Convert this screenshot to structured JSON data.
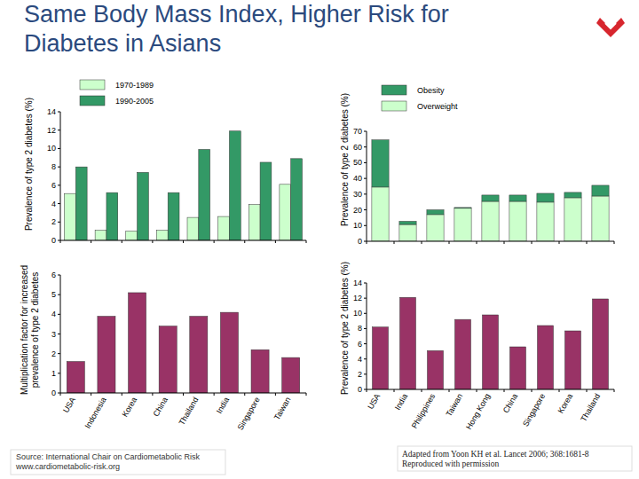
{
  "title": "Same Body Mass Index, Higher Risk for Diabetes in Asians",
  "source": [
    "Source: International Chair on Cardiometabolic Risk",
    "www.cardiometabolic-risk.org"
  ],
  "citation": [
    "Adapted from Yoon KH et al. Lancet 2006; 368:1681-8",
    "Reproduced with permission"
  ],
  "chart_data": [
    {
      "type": "bar",
      "y_label": "Prevalence of type 2 diabetes (%)",
      "categories": [
        null,
        null,
        null,
        null,
        null,
        null,
        null,
        null
      ],
      "series": [
        {
          "name": "1970-1989",
          "color": "#ccffcc",
          "values": [
            5.1,
            1.1,
            1.0,
            1.1,
            2.5,
            2.6,
            3.9,
            6.1
          ]
        },
        {
          "name": "1990-2005",
          "color": "#339966",
          "values": [
            8.0,
            5.2,
            7.4,
            5.2,
            9.9,
            11.9,
            8.5,
            8.9
          ]
        }
      ],
      "ylim": [
        0,
        14
      ],
      "yticks": [
        0,
        2,
        4,
        6,
        8,
        10,
        12,
        14
      ],
      "grid": false,
      "tick_labels": "y",
      "legend": "top left"
    },
    {
      "type": "bar",
      "y_label": "Multiplication factor for increased\nprevalence of type 2 diabetes",
      "categories": [
        "USA",
        "Indonesia",
        "Korea",
        "China",
        "Thailand",
        "India",
        "Singapore",
        "Taiwan"
      ],
      "values": [
        1.6,
        3.9,
        5.1,
        3.4,
        3.9,
        4.1,
        2.2,
        1.8
      ],
      "color": "#993366",
      "ylim": [
        0,
        6
      ],
      "yticks": [
        0,
        1,
        2,
        3,
        4,
        5,
        6
      ],
      "grid": false
    },
    {
      "type": "bar",
      "stacked": true,
      "y_label": "Prevalence of type 2 diabetes (%)",
      "categories": [
        null,
        null,
        null,
        null,
        null,
        null,
        null,
        null,
        null
      ],
      "series": [
        {
          "name": "Obesity",
          "color": "#339966",
          "values": [
            30,
            2,
            3,
            0.5,
            4,
            4,
            5.6,
            3.4,
            6.8
          ]
        },
        {
          "name": "Overweight",
          "color": "#ccffcc",
          "values": [
            34.5,
            10.7,
            17,
            21,
            25.4,
            25.4,
            24.9,
            27.7,
            28.8
          ]
        }
      ],
      "ylim": [
        0,
        70
      ],
      "yticks": [
        0,
        10,
        20,
        30,
        40,
        50,
        60,
        70
      ],
      "grid": false,
      "tick_labels": "y",
      "legend": "top left"
    },
    {
      "type": "bar",
      "y_label": "Prevalence of type 2 diabetes (%)",
      "categories": [
        "USA",
        "India",
        "Philippines",
        "Taiwan",
        "Hong Kong",
        "China",
        "Singapore",
        "Korea",
        "Thailand"
      ],
      "values": [
        8.2,
        12.1,
        5.1,
        9.2,
        9.8,
        5.6,
        8.4,
        7.7,
        11.9
      ],
      "color": "#993366",
      "ylim": [
        0,
        14
      ],
      "yticks": [
        0,
        2,
        4,
        6,
        8,
        10,
        12,
        14
      ],
      "grid": false
    }
  ]
}
